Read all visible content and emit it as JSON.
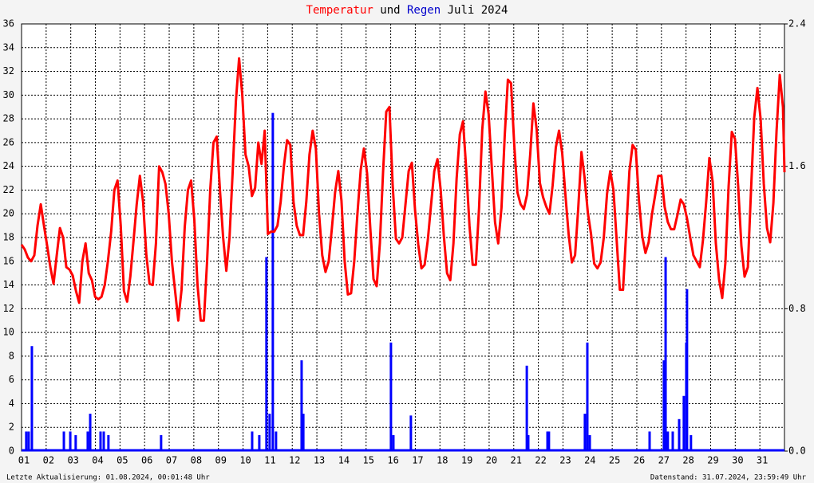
{
  "chart_data": {
    "type": "line-bar",
    "title": {
      "connector": "und",
      "period": "Juli 2024"
    },
    "footer_left": "Letzte Aktualisierung: 01.08.2024, 00:01:48 Uhr",
    "footer_right": "Datenstand: 31.07.2024, 23:59:49 Uhr",
    "xlim": [
      0,
      31
    ],
    "xticks": [
      {
        "value": 0,
        "label": "01"
      },
      {
        "value": 1,
        "label": "02"
      },
      {
        "value": 2,
        "label": "03"
      },
      {
        "value": 3,
        "label": "04"
      },
      {
        "value": 4,
        "label": "05"
      },
      {
        "value": 5,
        "label": "06"
      },
      {
        "value": 6,
        "label": "07"
      },
      {
        "value": 7,
        "label": "08"
      },
      {
        "value": 8,
        "label": "09"
      },
      {
        "value": 9,
        "label": "10"
      },
      {
        "value": 10,
        "label": "11"
      },
      {
        "value": 11,
        "label": "12"
      },
      {
        "value": 12,
        "label": "13"
      },
      {
        "value": 13,
        "label": "14"
      },
      {
        "value": 14,
        "label": "15"
      },
      {
        "value": 15,
        "label": "16"
      },
      {
        "value": 16,
        "label": "17"
      },
      {
        "value": 17,
        "label": "18"
      },
      {
        "value": 18,
        "label": "19"
      },
      {
        "value": 19,
        "label": "20"
      },
      {
        "value": 20,
        "label": "21"
      },
      {
        "value": 21,
        "label": "22"
      },
      {
        "value": 22,
        "label": "23"
      },
      {
        "value": 23,
        "label": "24"
      },
      {
        "value": 24,
        "label": "25"
      },
      {
        "value": 25,
        "label": "26"
      },
      {
        "value": 26,
        "label": "27"
      },
      {
        "value": 27,
        "label": "28"
      },
      {
        "value": 28,
        "label": "29"
      },
      {
        "value": 29,
        "label": "30"
      },
      {
        "value": 30,
        "label": "31"
      }
    ],
    "ylim": [
      0,
      36
    ],
    "yticks": [
      0,
      2,
      4,
      6,
      8,
      10,
      12,
      14,
      16,
      18,
      20,
      22,
      24,
      26,
      28,
      30,
      32,
      34,
      36
    ],
    "y2lim": [
      0,
      2.4
    ],
    "y2ticks": [
      {
        "value": 0,
        "label": "0.0"
      },
      0.8,
      1.6,
      2.4
    ],
    "grid": true,
    "series": [
      {
        "name": "Temperatur",
        "type": "line",
        "color": "#ff0000",
        "x": [
          0,
          0.13,
          0.26,
          0.39,
          0.52,
          0.65,
          0.78,
          0.91,
          1.04,
          1.17,
          1.3,
          1.43,
          1.56,
          1.69,
          1.82,
          1.95,
          2.08,
          2.21,
          2.34,
          2.47,
          2.6,
          2.73,
          2.86,
          2.99,
          3.12,
          3.25,
          3.38,
          3.51,
          3.64,
          3.77,
          3.9,
          4.03,
          4.16,
          4.29,
          4.42,
          4.55,
          4.68,
          4.81,
          4.94,
          5.07,
          5.2,
          5.33,
          5.46,
          5.59,
          5.72,
          5.85,
          5.98,
          6.11,
          6.24,
          6.37,
          6.5,
          6.63,
          6.76,
          6.89,
          7.02,
          7.15,
          7.28,
          7.41,
          7.54,
          7.67,
          7.8,
          7.93,
          8.06,
          8.19,
          8.32,
          8.45,
          8.58,
          8.71,
          8.84,
          8.97,
          9.1,
          9.23,
          9.36,
          9.49,
          9.62,
          9.75,
          9.88,
          10.01,
          10.14,
          10.27,
          10.4,
          10.53,
          10.66,
          10.79,
          10.92,
          11.05,
          11.18,
          11.31,
          11.44,
          11.57,
          11.7,
          11.83,
          11.96,
          12.09,
          12.22,
          12.35,
          12.48,
          12.61,
          12.74,
          12.87,
          13,
          13.13,
          13.26,
          13.39,
          13.52,
          13.65,
          13.78,
          13.91,
          14.04,
          14.17,
          14.3,
          14.43,
          14.56,
          14.69,
          14.82,
          14.95,
          15.08,
          15.21,
          15.34,
          15.47,
          15.6,
          15.73,
          15.86,
          15.99,
          16.12,
          16.25,
          16.38,
          16.51,
          16.64,
          16.77,
          16.9,
          17.03,
          17.16,
          17.29,
          17.42,
          17.55,
          17.68,
          17.81,
          17.94,
          18.07,
          18.2,
          18.33,
          18.46,
          18.59,
          18.72,
          18.85,
          18.98,
          19.11,
          19.24,
          19.37,
          19.5,
          19.63,
          19.76,
          19.89,
          20.02,
          20.15,
          20.28,
          20.41,
          20.54,
          20.67,
          20.8,
          20.93,
          21.06,
          21.19,
          21.32,
          21.45,
          21.58,
          21.71,
          21.84,
          21.97,
          22.1,
          22.23,
          22.36,
          22.49,
          22.62,
          22.75,
          22.88,
          23.01,
          23.14,
          23.27,
          23.4,
          23.53,
          23.66,
          23.79,
          23.92,
          24.05,
          24.18,
          24.31,
          24.44,
          24.57,
          24.7,
          24.83,
          24.96,
          25.09,
          25.22,
          25.35,
          25.48,
          25.61,
          25.74,
          25.87,
          26,
          26.13,
          26.26,
          26.39,
          26.52,
          26.65,
          26.78,
          26.91,
          27.04,
          27.17,
          27.3,
          27.43,
          27.56,
          27.69,
          27.82,
          27.95,
          28.08,
          28.21,
          28.34,
          28.47,
          28.6,
          28.73,
          28.86,
          28.99,
          29.12,
          29.25,
          29.38,
          29.51,
          29.64,
          29.77,
          29.9,
          30.03,
          30.16,
          30.29,
          30.42,
          30.55,
          30.68,
          30.81,
          30.94,
          31
        ],
        "values": [
          17.4,
          17,
          16.3,
          16,
          16.5,
          19,
          20.8,
          19,
          17.3,
          15.5,
          14.1,
          16.5,
          18.8,
          18,
          15.5,
          15.3,
          14.8,
          13.5,
          12.5,
          16,
          17.5,
          15,
          14.4,
          13,
          12.8,
          13,
          14,
          16,
          18.5,
          22,
          22.8,
          19,
          13.5,
          12.6,
          14.7,
          17.7,
          20.8,
          23.2,
          21,
          16.5,
          14.1,
          14,
          17.5,
          24,
          23.5,
          22.5,
          20,
          16,
          13.5,
          11,
          13.6,
          18.9,
          22,
          22.8,
          19.5,
          14,
          11,
          11,
          16,
          22.1,
          26,
          26.5,
          22,
          18,
          15.2,
          18,
          23.6,
          29.5,
          33.1,
          30,
          25,
          24,
          21.5,
          22.2,
          26,
          24.2,
          27,
          18.3,
          18.5,
          18.5,
          19,
          21,
          24,
          26.2,
          25.8,
          21,
          19,
          18.2,
          18.2,
          21,
          25,
          27,
          25.5,
          20,
          16.5,
          15.1,
          16,
          18.8,
          21.8,
          23.6,
          21.1,
          16,
          13.2,
          13.3,
          16,
          20,
          23.7,
          25.5,
          23.4,
          18.8,
          14.5,
          13.9,
          17.5,
          23.5,
          28.6,
          29,
          22.5,
          17.9,
          17.5,
          18,
          20.8,
          23.6,
          24.3,
          20.3,
          17.4,
          15.4,
          15.7,
          17.8,
          20.8,
          23.6,
          24.6,
          22,
          18.1,
          15,
          14.4,
          17.5,
          23,
          26.7,
          27.8,
          23.7,
          19,
          15.7,
          15.7,
          20.5,
          27.1,
          30.3,
          28.4,
          23.8,
          19.3,
          17.5,
          20.5,
          26.5,
          31.3,
          31,
          25.8,
          21.8,
          20.8,
          20.4,
          21.6,
          25,
          29.3,
          27.1,
          22.6,
          21.4,
          20.6,
          20,
          22.4,
          25.6,
          27,
          25.1,
          21.6,
          18.3,
          15.9,
          16.5,
          20.5,
          25.2,
          23,
          20.1,
          18.3,
          15.8,
          15.4,
          15.9,
          18,
          21.7,
          23.6,
          22,
          17.8,
          13.6,
          13.6,
          18.5,
          23.6,
          25.8,
          25.4,
          21.1,
          18.1,
          16.7,
          17.6,
          19.9,
          21.5,
          23.2,
          23.2,
          20.6,
          19.3,
          18.7,
          18.7,
          19.9,
          21.2,
          20.8,
          19.6,
          18,
          16.5,
          16,
          15.5,
          17.8,
          21,
          24.7,
          22.7,
          17.5,
          14.5,
          12.9,
          15.9,
          22.3,
          26.9,
          26.3,
          22.3,
          17.3,
          14.7,
          15.5,
          22,
          28.1,
          30.6,
          28,
          22.5,
          18.8,
          17.6,
          20.9,
          27,
          31.7,
          29,
          23.5
        ]
      },
      {
        "name": "Regen",
        "type": "bar",
        "axis": "y2",
        "color": "#0000ff",
        "x": [
          0.19,
          0.29,
          0.42,
          1.72,
          1.98,
          2.2,
          2.69,
          2.79,
          3.21,
          3.34,
          3.53,
          5.67,
          9.37,
          9.66,
          9.95,
          10.08,
          10.21,
          10.34,
          11.38,
          11.45,
          15.01,
          15.11,
          15.82,
          20.53,
          20.59,
          21.37,
          21.43,
          22.89,
          22.99,
          23.09,
          25.52,
          26.1,
          26.17,
          26.26,
          26.46,
          26.72,
          26.91,
          27.01,
          27.04,
          27.2
        ],
        "values": [
          0.11,
          0.11,
          0.59,
          0.11,
          0.11,
          0.09,
          0.11,
          0.21,
          0.11,
          0.11,
          0.09,
          0.09,
          0.11,
          0.09,
          1.09,
          0.21,
          1.9,
          0.11,
          0.51,
          0.21,
          0.61,
          0.09,
          0.2,
          0.48,
          0.09,
          0.11,
          0.11,
          0.21,
          0.61,
          0.09,
          0.11,
          0.51,
          1.09,
          0.11,
          0.11,
          0.18,
          0.31,
          0.61,
          0.91,
          0.09
        ]
      }
    ]
  }
}
